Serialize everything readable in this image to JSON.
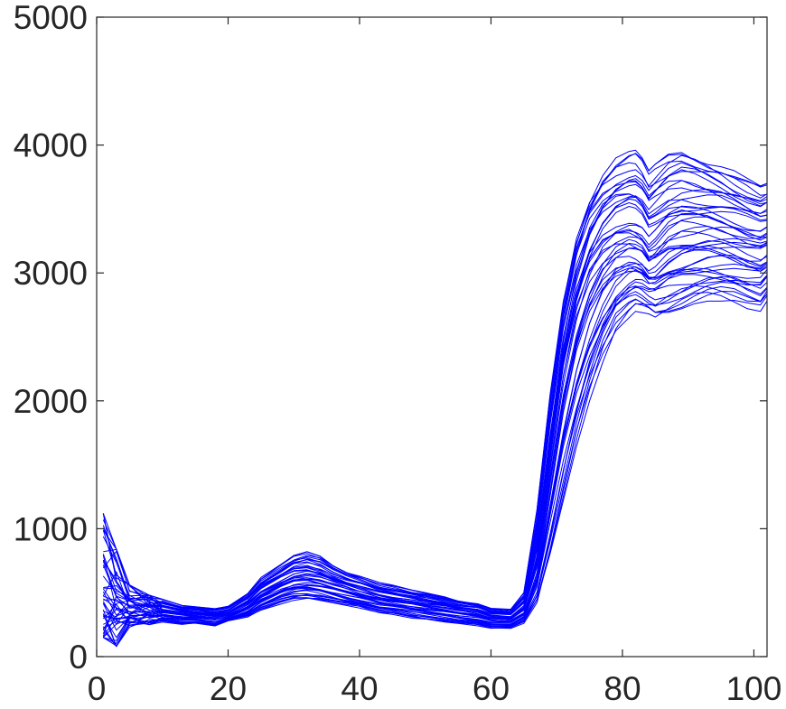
{
  "chart_data": {
    "type": "line",
    "title": "",
    "xlabel": "",
    "ylabel": "",
    "xlim": [
      0,
      102
    ],
    "ylim": [
      0,
      5000
    ],
    "xticks": [
      0,
      20,
      40,
      60,
      80,
      100
    ],
    "yticks": [
      0,
      1000,
      2000,
      3000,
      4000,
      5000
    ],
    "xtick_labels": [
      "0",
      "20",
      "40",
      "60",
      "80",
      "100"
    ],
    "ytick_labels": [
      "0",
      "1000",
      "2000",
      "3000",
      "4000",
      "5000"
    ],
    "grid": false,
    "legend": "none",
    "line_color": "#0000ff",
    "series_count": 48,
    "x": [
      1,
      3,
      5,
      8,
      10,
      13,
      15,
      18,
      20,
      23,
      25,
      28,
      30,
      32,
      34,
      36,
      38,
      40,
      43,
      45,
      48,
      50,
      53,
      55,
      58,
      60,
      63,
      65,
      67,
      69,
      71,
      73,
      75,
      77,
      79,
      81,
      82,
      83,
      84,
      85,
      87,
      89,
      91,
      93,
      95,
      97,
      99,
      101,
      102
    ],
    "envelope": {
      "low": [
        150,
        80,
        230,
        250,
        270,
        250,
        260,
        240,
        280,
        310,
        360,
        410,
        440,
        450,
        440,
        420,
        400,
        380,
        340,
        330,
        300,
        290,
        270,
        260,
        240,
        220,
        220,
        260,
        420,
        790,
        1220,
        1640,
        2000,
        2300,
        2530,
        2650,
        2700,
        2690,
        2680,
        2650,
        2680,
        2720,
        2760,
        2780,
        2780,
        2760,
        2720,
        2700,
        2780
      ],
      "median": [
        420,
        360,
        380,
        360,
        350,
        330,
        320,
        300,
        320,
        400,
        480,
        560,
        600,
        610,
        590,
        560,
        530,
        500,
        460,
        440,
        420,
        400,
        380,
        360,
        340,
        310,
        300,
        370,
        720,
        1460,
        2150,
        2640,
        2950,
        3130,
        3220,
        3250,
        3230,
        3200,
        3120,
        3150,
        3250,
        3290,
        3300,
        3310,
        3300,
        3280,
        3250,
        3230,
        3250
      ],
      "high": [
        1120,
        840,
        560,
        480,
        450,
        400,
        390,
        380,
        400,
        500,
        620,
        720,
        790,
        820,
        790,
        720,
        670,
        640,
        580,
        560,
        520,
        500,
        470,
        440,
        420,
        380,
        370,
        500,
        1150,
        2050,
        2800,
        3300,
        3620,
        3800,
        3900,
        3950,
        3960,
        3900,
        3800,
        3850,
        3930,
        3970,
        3940,
        3900,
        3860,
        3800,
        3740,
        3680,
        3700
      ]
    }
  }
}
